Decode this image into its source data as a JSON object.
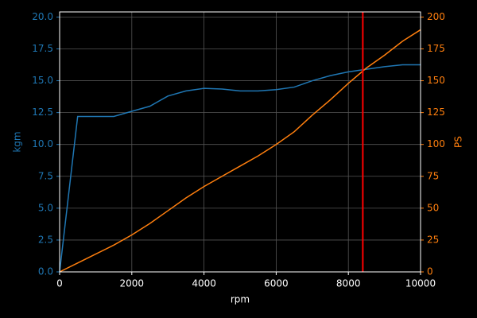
{
  "chart_data": {
    "type": "line",
    "x_label": "rpm",
    "y_label": "kgm",
    "y2_label": "PS",
    "x": [
      0,
      500,
      1000,
      1500,
      2000,
      2500,
      3000,
      3500,
      4000,
      4500,
      5000,
      5500,
      6000,
      6500,
      7000,
      7500,
      8000,
      8500,
      9000,
      9500,
      10000
    ],
    "series": [
      {
        "name": "kgm",
        "color": "#1f77b4",
        "axis": "y",
        "values": [
          0,
          12.2,
          12.2,
          12.2,
          12.6,
          13.0,
          13.8,
          14.2,
          14.4,
          14.35,
          14.2,
          14.2,
          14.3,
          14.5,
          15.0,
          15.4,
          15.7,
          15.9,
          16.1,
          16.25,
          16.25
        ]
      },
      {
        "name": "PS",
        "color": "#ff7f0e",
        "axis": "y2",
        "values": [
          0,
          7,
          14,
          21,
          29,
          38,
          48,
          58,
          67,
          75,
          83,
          91,
          100,
          110,
          123,
          135,
          148,
          160,
          170,
          181,
          190
        ]
      }
    ],
    "x_marker": 8400,
    "x_marker_color": "#ff0000",
    "xlim": [
      0,
      10000
    ],
    "xticks": [
      0,
      2000,
      4000,
      6000,
      8000,
      10000
    ],
    "ylim": [
      0,
      20.4
    ],
    "yticks": [
      {
        "value": 0,
        "label": "0.0"
      },
      2.5,
      {
        "value": 5,
        "label": "5.0"
      },
      7.5,
      {
        "value": 10,
        "label": "10.0"
      },
      12.5,
      {
        "value": 15,
        "label": "15.0"
      },
      17.5,
      {
        "value": 20,
        "label": "20.0"
      }
    ],
    "y2lim": [
      0,
      204
    ],
    "y2ticks": [
      0,
      25,
      50,
      75,
      100,
      125,
      150,
      175,
      200
    ],
    "grid": true
  }
}
